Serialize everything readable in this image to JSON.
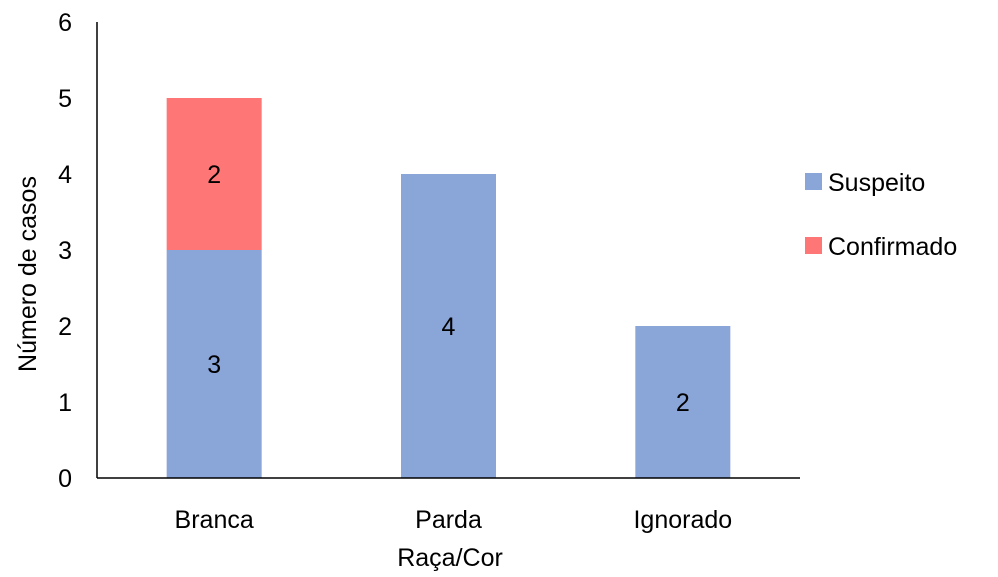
{
  "chart_data": {
    "type": "bar",
    "stacked": true,
    "title": "",
    "xlabel": "Raça/Cor",
    "ylabel": "Número de casos",
    "categories": [
      "Branca",
      "Parda",
      "Ignorado"
    ],
    "series": [
      {
        "name": "Suspeito",
        "color": "#8aa5d8",
        "values": [
          3,
          4,
          2
        ],
        "labels": [
          "3",
          "4",
          "2"
        ]
      },
      {
        "name": "Confirmado",
        "color": "#fe7776",
        "values": [
          2,
          0,
          0
        ],
        "labels": [
          "2",
          "",
          ""
        ]
      }
    ],
    "ylim": [
      0,
      6
    ],
    "yticks": [
      "0",
      "1",
      "2",
      "3",
      "4",
      "5",
      "6"
    ],
    "grid": false,
    "legend_position": "right"
  }
}
